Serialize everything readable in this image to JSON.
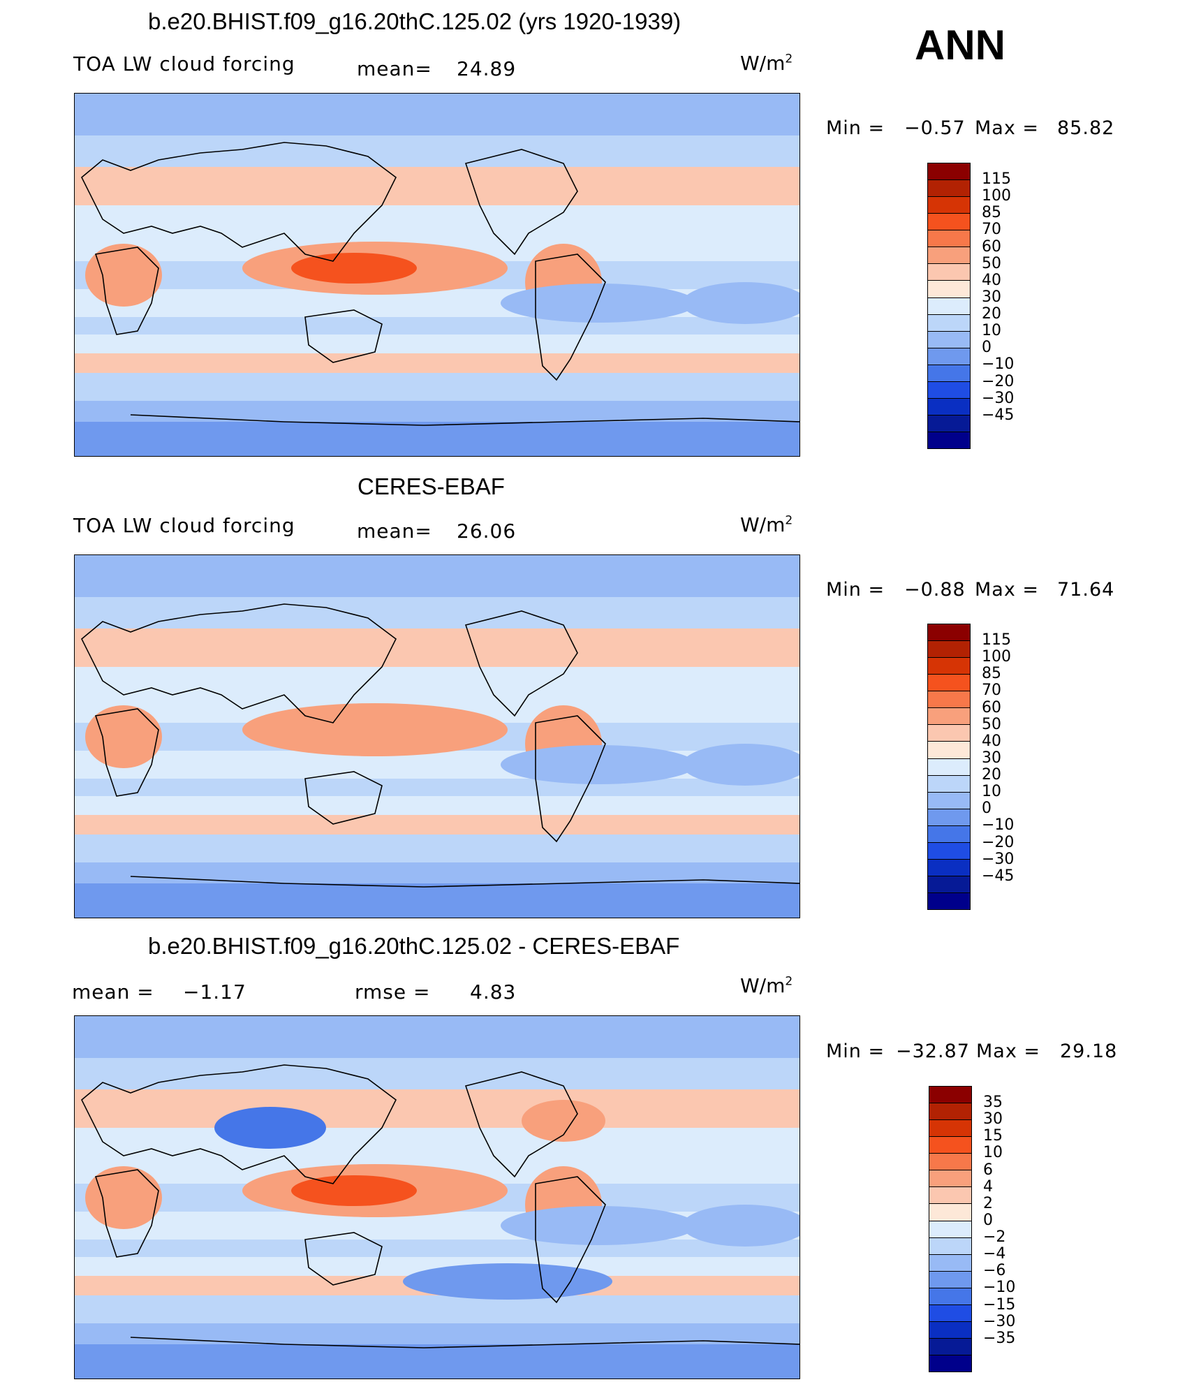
{
  "season": "ANN",
  "units_base": "W/m",
  "units_exp": "2",
  "panels": [
    {
      "title": "b.e20.BHIST.f09_g16.20thC.125.02 (yrs 1920-1939)",
      "variable": "TOA LW cloud forcing",
      "mean_label": "mean=",
      "mean_value": "24.89",
      "min_label": "Min =",
      "min_value": "−0.57",
      "max_label": "Max =",
      "max_value": "85.82",
      "ticks": [
        "115",
        "100",
        "85",
        "70",
        "60",
        "50",
        "40",
        "30",
        "20",
        "10",
        "0",
        "−10",
        "−20",
        "−30",
        "−45"
      ]
    },
    {
      "title": "CERES-EBAF",
      "variable": "TOA LW cloud forcing",
      "mean_label": "mean=",
      "mean_value": "26.06",
      "min_label": "Min =",
      "min_value": "−0.88",
      "max_label": "Max =",
      "max_value": "71.64",
      "ticks": [
        "115",
        "100",
        "85",
        "70",
        "60",
        "50",
        "40",
        "30",
        "20",
        "10",
        "0",
        "−10",
        "−20",
        "−30",
        "−45"
      ]
    },
    {
      "title": "b.e20.BHIST.f09_g16.20thC.125.02 - CERES-EBAF",
      "mean_label": "mean =",
      "mean_value": "−1.17",
      "rmse_label": "rmse =",
      "rmse_value": "4.83",
      "min_label": "Min =",
      "min_value": "−32.87",
      "max_label": "Max =",
      "max_value": "29.18",
      "ticks": [
        "35",
        "30",
        "15",
        "10",
        "6",
        "4",
        "2",
        "0",
        "−2",
        "−4",
        "−6",
        "−10",
        "−15",
        "−30",
        "−35"
      ]
    }
  ],
  "colorbar_colors": [
    "#8b0000",
    "#b22203",
    "#d63405",
    "#f5521e",
    "#f7784a",
    "#f8a07c",
    "#fbc7b0",
    "#fde8d8",
    "#dcecfc",
    "#bcd6f9",
    "#98baf5",
    "#6f99ee",
    "#4576e8",
    "#1f4de4",
    "#0a2fc2",
    "#061a96",
    "#00008b"
  ],
  "map_colors": {
    "high": "#f8a07c",
    "peak": "#f5521e",
    "warm": "#fbc7b0",
    "neutral": "#dcecfc",
    "cool": "#bcd6f9",
    "cold": "#98baf5",
    "colder": "#6f99ee",
    "coldest": "#4576e8",
    "land_outline": "#000000"
  }
}
